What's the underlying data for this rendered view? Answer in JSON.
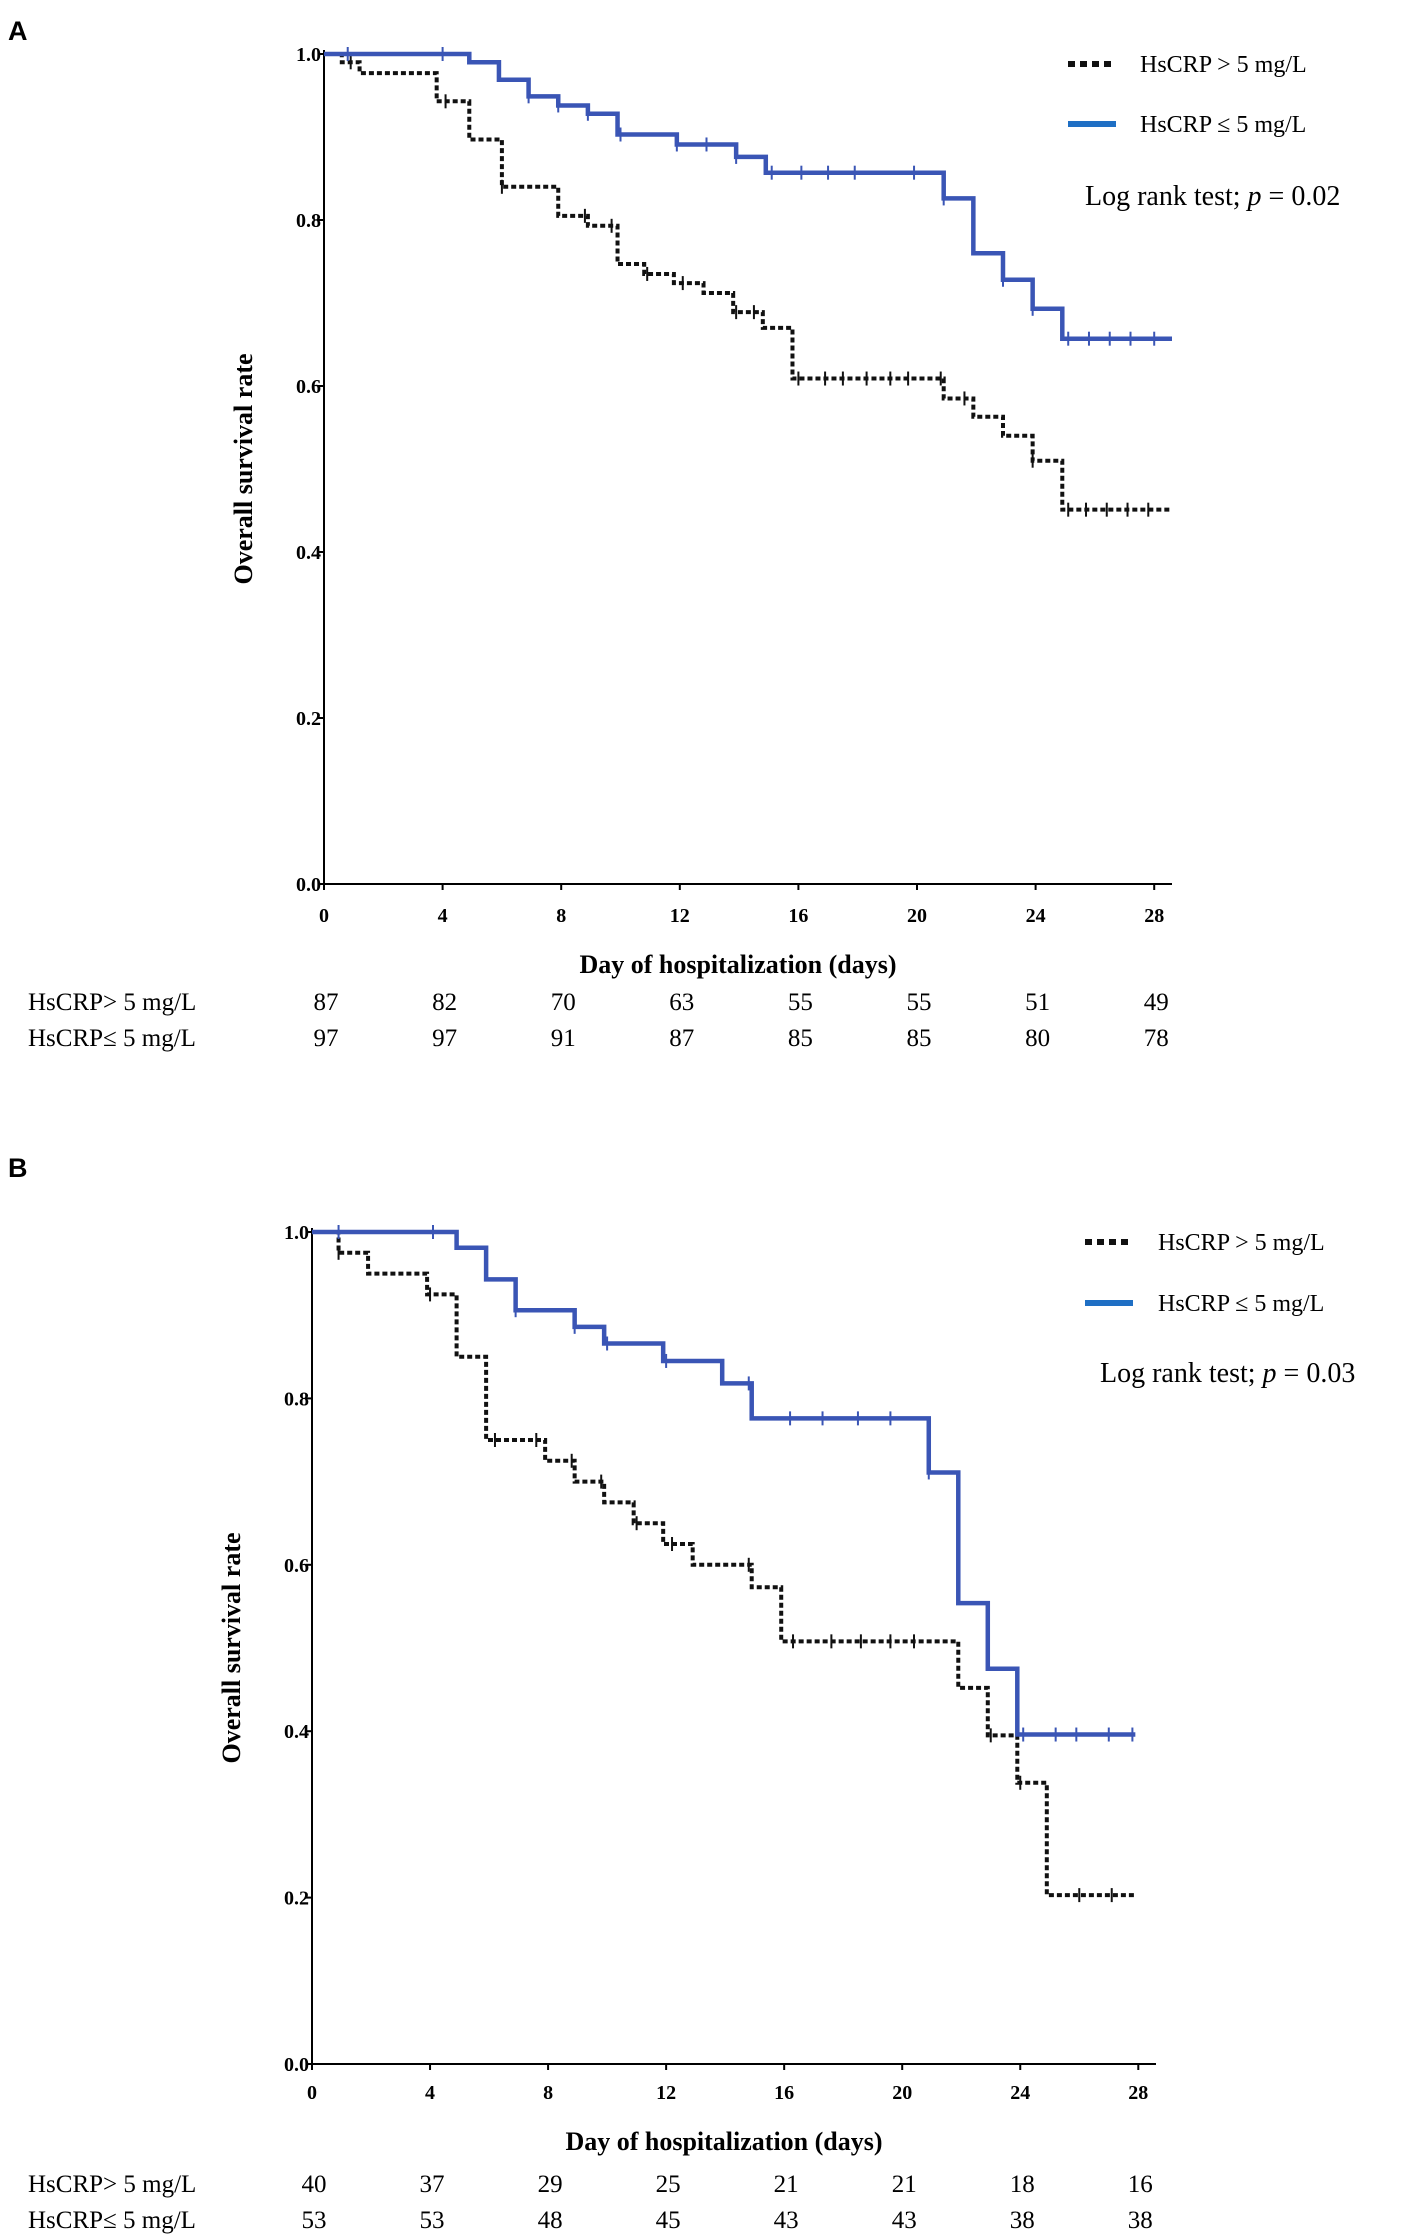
{
  "chart_data": [
    {
      "panel": "A",
      "type": "line",
      "subtype": "kaplan-meier step",
      "xlabel": "Day of hospitalization (days)",
      "ylabel": "Overall survival rate",
      "xlim": [
        0,
        28.6
      ],
      "ylim": [
        0,
        1.0
      ],
      "x_ticks": [
        0,
        4,
        8,
        12,
        16,
        20,
        24,
        28
      ],
      "x_tick_labels": [
        "0",
        "4",
        "8",
        "12",
        "16",
        "20",
        "24",
        "28"
      ],
      "y_ticks": [
        0.0,
        0.2,
        0.4,
        0.6,
        0.8,
        1.0
      ],
      "y_tick_labels": [
        "0.0",
        "0.2",
        "0.4",
        "0.6",
        "0.8",
        "1.0"
      ],
      "legend_location": "top-right",
      "annotation": {
        "prefix": "Log rank test; ",
        "p_symbol": "p",
        "suffix": " = 0.02"
      },
      "series": [
        {
          "name": "HsCRP > 5 mg/L",
          "color": "#111111",
          "style": "dotted",
          "steps": [
            [
              0,
              1.0
            ],
            [
              0.6,
              0.99
            ],
            [
              1.2,
              0.977
            ],
            [
              3.8,
              0.943
            ],
            [
              4.9,
              0.897
            ],
            [
              6.0,
              0.84
            ],
            [
              7.9,
              0.805
            ],
            [
              8.9,
              0.793
            ],
            [
              9.9,
              0.747
            ],
            [
              10.8,
              0.735
            ],
            [
              11.8,
              0.724
            ],
            [
              12.8,
              0.712
            ],
            [
              13.8,
              0.689
            ],
            [
              14.8,
              0.67
            ],
            [
              15.8,
              0.609
            ],
            [
              20.9,
              0.585
            ],
            [
              21.9,
              0.563
            ],
            [
              22.9,
              0.54
            ],
            [
              23.9,
              0.51
            ],
            [
              24.9,
              0.451
            ]
          ],
          "x_end": 28.6,
          "censor_x": [
            0.9,
            4.1,
            6.0,
            8.8,
            9.7,
            10.9,
            12.1,
            13.9,
            14.5,
            16.0,
            16.9,
            17.5,
            18.3,
            19.1,
            19.7,
            20.8,
            21.6,
            23.9,
            25.1,
            25.7,
            26.4,
            27.1,
            27.8
          ]
        },
        {
          "name": "HsCRP ≤ 5 mg/L",
          "color": "#3a55b5",
          "style": "solid",
          "steps": [
            [
              0,
              1.0
            ],
            [
              4.9,
              0.99
            ],
            [
              5.9,
              0.969
            ],
            [
              6.9,
              0.949
            ],
            [
              7.9,
              0.938
            ],
            [
              8.9,
              0.928
            ],
            [
              9.9,
              0.903
            ],
            [
              11.9,
              0.891
            ],
            [
              13.9,
              0.876
            ],
            [
              14.9,
              0.857
            ],
            [
              20.9,
              0.826
            ],
            [
              21.9,
              0.76
            ],
            [
              22.9,
              0.728
            ],
            [
              23.9,
              0.693
            ],
            [
              24.9,
              0.657
            ]
          ],
          "x_end": 28.6,
          "censor_x": [
            0.8,
            4.0,
            6.9,
            7.9,
            8.9,
            10.0,
            11.9,
            12.9,
            13.9,
            15.1,
            16.1,
            17.0,
            17.9,
            19.9,
            20.9,
            22.9,
            23.9,
            25.1,
            25.8,
            26.5,
            27.2,
            28.0
          ]
        }
      ],
      "risk_table": {
        "rows": [
          {
            "label": "HsCRP> 5 mg/L",
            "values": [
              "87",
              "82",
              "70",
              "63",
              "55",
              "55",
              "51",
              "49"
            ]
          },
          {
            "label": "HsCRP≤ 5 mg/L",
            "values": [
              "97",
              "97",
              "91",
              "87",
              "85",
              "85",
              "80",
              "78"
            ]
          }
        ]
      }
    },
    {
      "panel": "B",
      "type": "line",
      "subtype": "kaplan-meier step",
      "xlabel": "Day of hospitalization (days)",
      "ylabel": "Overall survival rate",
      "xlim": [
        0,
        28.6
      ],
      "ylim": [
        0,
        1.0
      ],
      "x_ticks": [
        0,
        4,
        8,
        12,
        16,
        20,
        24,
        28
      ],
      "x_tick_labels": [
        "0",
        "4",
        "8",
        "12",
        "16",
        "20",
        "24",
        "28"
      ],
      "y_ticks": [
        0.0,
        0.2,
        0.4,
        0.6,
        0.8,
        1.0
      ],
      "y_tick_labels": [
        "0.0",
        "0.2",
        "0.4",
        "0.6",
        "0.8",
        "1.0"
      ],
      "legend_location": "top-right",
      "annotation": {
        "prefix": "Log rank test; ",
        "p_symbol": "p",
        "suffix": " = 0.03"
      },
      "series": [
        {
          "name": "HsCRP > 5 mg/L",
          "color": "#111111",
          "style": "dotted",
          "steps": [
            [
              0,
              1.0
            ],
            [
              0.9,
              0.975
            ],
            [
              1.9,
              0.95
            ],
            [
              3.9,
              0.925
            ],
            [
              4.9,
              0.85
            ],
            [
              5.9,
              0.75
            ],
            [
              7.9,
              0.725
            ],
            [
              8.9,
              0.7
            ],
            [
              9.9,
              0.675
            ],
            [
              10.9,
              0.65
            ],
            [
              11.9,
              0.625
            ],
            [
              12.9,
              0.6
            ],
            [
              14.9,
              0.573
            ],
            [
              15.9,
              0.508
            ],
            [
              21.9,
              0.452
            ],
            [
              22.9,
              0.395
            ],
            [
              23.9,
              0.338
            ],
            [
              24.9,
              0.203
            ]
          ],
          "x_end": 27.9,
          "censor_x": [
            0.9,
            4.0,
            6.2,
            7.6,
            8.8,
            9.8,
            11.0,
            12.2,
            14.8,
            16.3,
            17.6,
            18.6,
            19.6,
            20.4,
            23.0,
            24.0,
            26.0,
            27.1
          ]
        },
        {
          "name": "HsCRP ≤ 5 mg/L",
          "color": "#3a55b5",
          "style": "solid",
          "steps": [
            [
              0,
              1.0
            ],
            [
              4.9,
              0.981
            ],
            [
              5.9,
              0.943
            ],
            [
              6.9,
              0.906
            ],
            [
              8.9,
              0.886
            ],
            [
              9.9,
              0.866
            ],
            [
              11.9,
              0.845
            ],
            [
              13.9,
              0.818
            ],
            [
              14.9,
              0.776
            ],
            [
              20.9,
              0.711
            ],
            [
              21.9,
              0.554
            ],
            [
              22.9,
              0.475
            ],
            [
              23.9,
              0.396
            ]
          ],
          "x_end": 27.9,
          "censor_x": [
            0.9,
            4.1,
            6.9,
            8.9,
            10.0,
            12.0,
            14.8,
            16.2,
            17.3,
            18.5,
            19.6,
            20.9,
            24.1,
            25.2,
            25.9,
            27.0,
            27.8
          ]
        }
      ],
      "risk_table": {
        "rows": [
          {
            "label": "HsCRP> 5 mg/L",
            "values": [
              "40",
              "37",
              "29",
              "25",
              "21",
              "21",
              "18",
              "16"
            ]
          },
          {
            "label": "HsCRP≤ 5 mg/L",
            "values": [
              "53",
              "53",
              "48",
              "45",
              "43",
              "43",
              "38",
              "38"
            ]
          }
        ]
      }
    }
  ]
}
